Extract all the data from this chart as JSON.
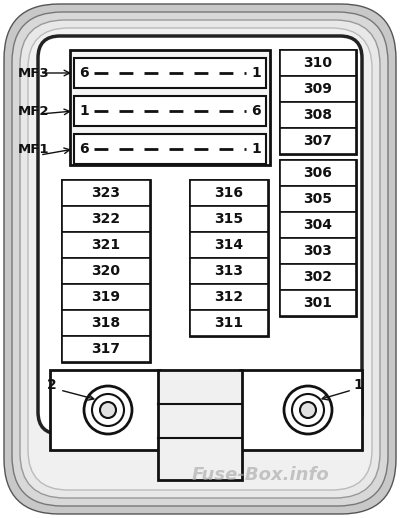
{
  "bg_color": "#ffffff",
  "line_color": "#111111",
  "watermark": "Fuse-Box.info",
  "left_col": [
    "323",
    "322",
    "321",
    "320",
    "319",
    "318",
    "317"
  ],
  "mid_col": [
    "316",
    "315",
    "314",
    "313",
    "312",
    "311"
  ],
  "right_col_top": [
    "310",
    "309",
    "308",
    "307"
  ],
  "right_col_bot": [
    "306",
    "305",
    "304",
    "303",
    "302",
    "301"
  ],
  "mf_labels": [
    "MF3",
    "MF2",
    "MF1"
  ],
  "mf_left_nums": [
    "6",
    "1",
    "6"
  ],
  "mf_right_nums": [
    "1",
    "6",
    "1"
  ],
  "label1": "1",
  "label2": "2",
  "border_colors": [
    "#333333",
    "#555555",
    "#777777",
    "#999999",
    "#bbbbbb"
  ],
  "border_widths": [
    3.5,
    2.5,
    2.0,
    1.5,
    1.0
  ]
}
